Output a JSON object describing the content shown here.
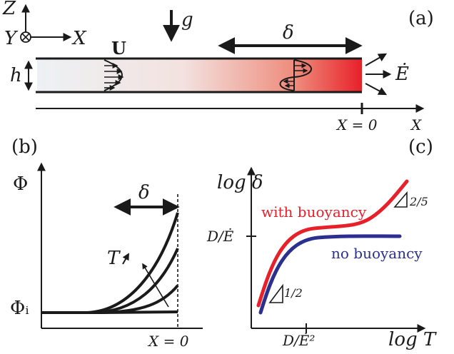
{
  "panel_a": {
    "panel_label": "(a)",
    "axis_z": "Z",
    "axis_y": "Y",
    "axis_x": "X",
    "gravity": "g",
    "velocity": "U",
    "height": "h",
    "delta": "δ",
    "flux": "Ė",
    "origin_label": "X = 0",
    "bottom_axis": "X"
  },
  "panel_b": {
    "panel_label": "(b)",
    "y_label": "Φ",
    "y_initial": "Φᵢ",
    "delta": "δ",
    "t_label": "T",
    "x_origin": "X = 0"
  },
  "panel_c": {
    "panel_label": "(c)",
    "y_axis": "log δ",
    "x_axis": "log T",
    "y_tick": "D/Ė",
    "x_tick": "D/Ė²",
    "with_buoyancy": "with buoyancy",
    "no_buoyancy": "no buoyancy",
    "slope_low": "1/2",
    "slope_high": "2/5",
    "colors": {
      "with_buoyancy": "#e8202a",
      "no_buoyancy": "#2b2f8f"
    }
  }
}
